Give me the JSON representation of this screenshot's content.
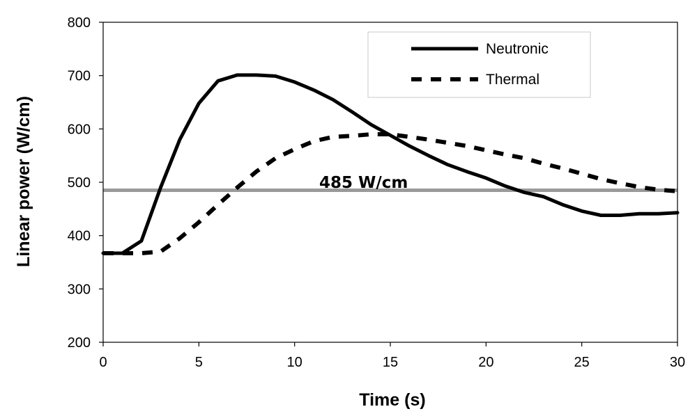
{
  "chart_data": {
    "type": "line",
    "xlabel": "Time (s)",
    "ylabel": "Linear power (W/cm)",
    "xlim": [
      0,
      30
    ],
    "ylim": [
      200,
      800
    ],
    "xticks": [
      0,
      5,
      10,
      15,
      20,
      25,
      30
    ],
    "yticks": [
      200,
      300,
      400,
      500,
      600,
      700,
      800
    ],
    "grid": false,
    "legend": "top-right",
    "series": [
      {
        "name": "Neutronic",
        "style": "solid",
        "color": "#000000",
        "x": [
          0,
          1,
          2,
          3,
          4,
          5,
          6,
          7,
          8,
          9,
          10,
          11,
          12,
          13,
          14,
          15,
          16,
          17,
          18,
          19,
          20,
          21,
          22,
          23,
          24,
          25,
          26,
          27,
          28,
          29,
          30
        ],
        "y": [
          367,
          367,
          390,
          490,
          580,
          648,
          690,
          701,
          701,
          699,
          688,
          673,
          655,
          632,
          608,
          588,
          568,
          550,
          533,
          520,
          508,
          493,
          481,
          473,
          458,
          446,
          438,
          438,
          441,
          441,
          443
        ]
      },
      {
        "name": "Thermal",
        "style": "dashed",
        "color": "#000000",
        "x": [
          0,
          1,
          2,
          3,
          4,
          5,
          6,
          7,
          8,
          9,
          10,
          11,
          12,
          13,
          14,
          15,
          16,
          17,
          18,
          19,
          20,
          21,
          22,
          23,
          24,
          25,
          26,
          27,
          28,
          29,
          30
        ],
        "y": [
          367,
          367,
          367,
          370,
          395,
          425,
          458,
          490,
          520,
          545,
          562,
          577,
          585,
          587,
          590,
          590,
          585,
          580,
          574,
          568,
          560,
          552,
          545,
          535,
          526,
          516,
          506,
          498,
          491,
          486,
          483
        ]
      }
    ],
    "reference_line": {
      "y": 485,
      "label": "485 W/cm",
      "color": "#9a9a9a"
    }
  }
}
